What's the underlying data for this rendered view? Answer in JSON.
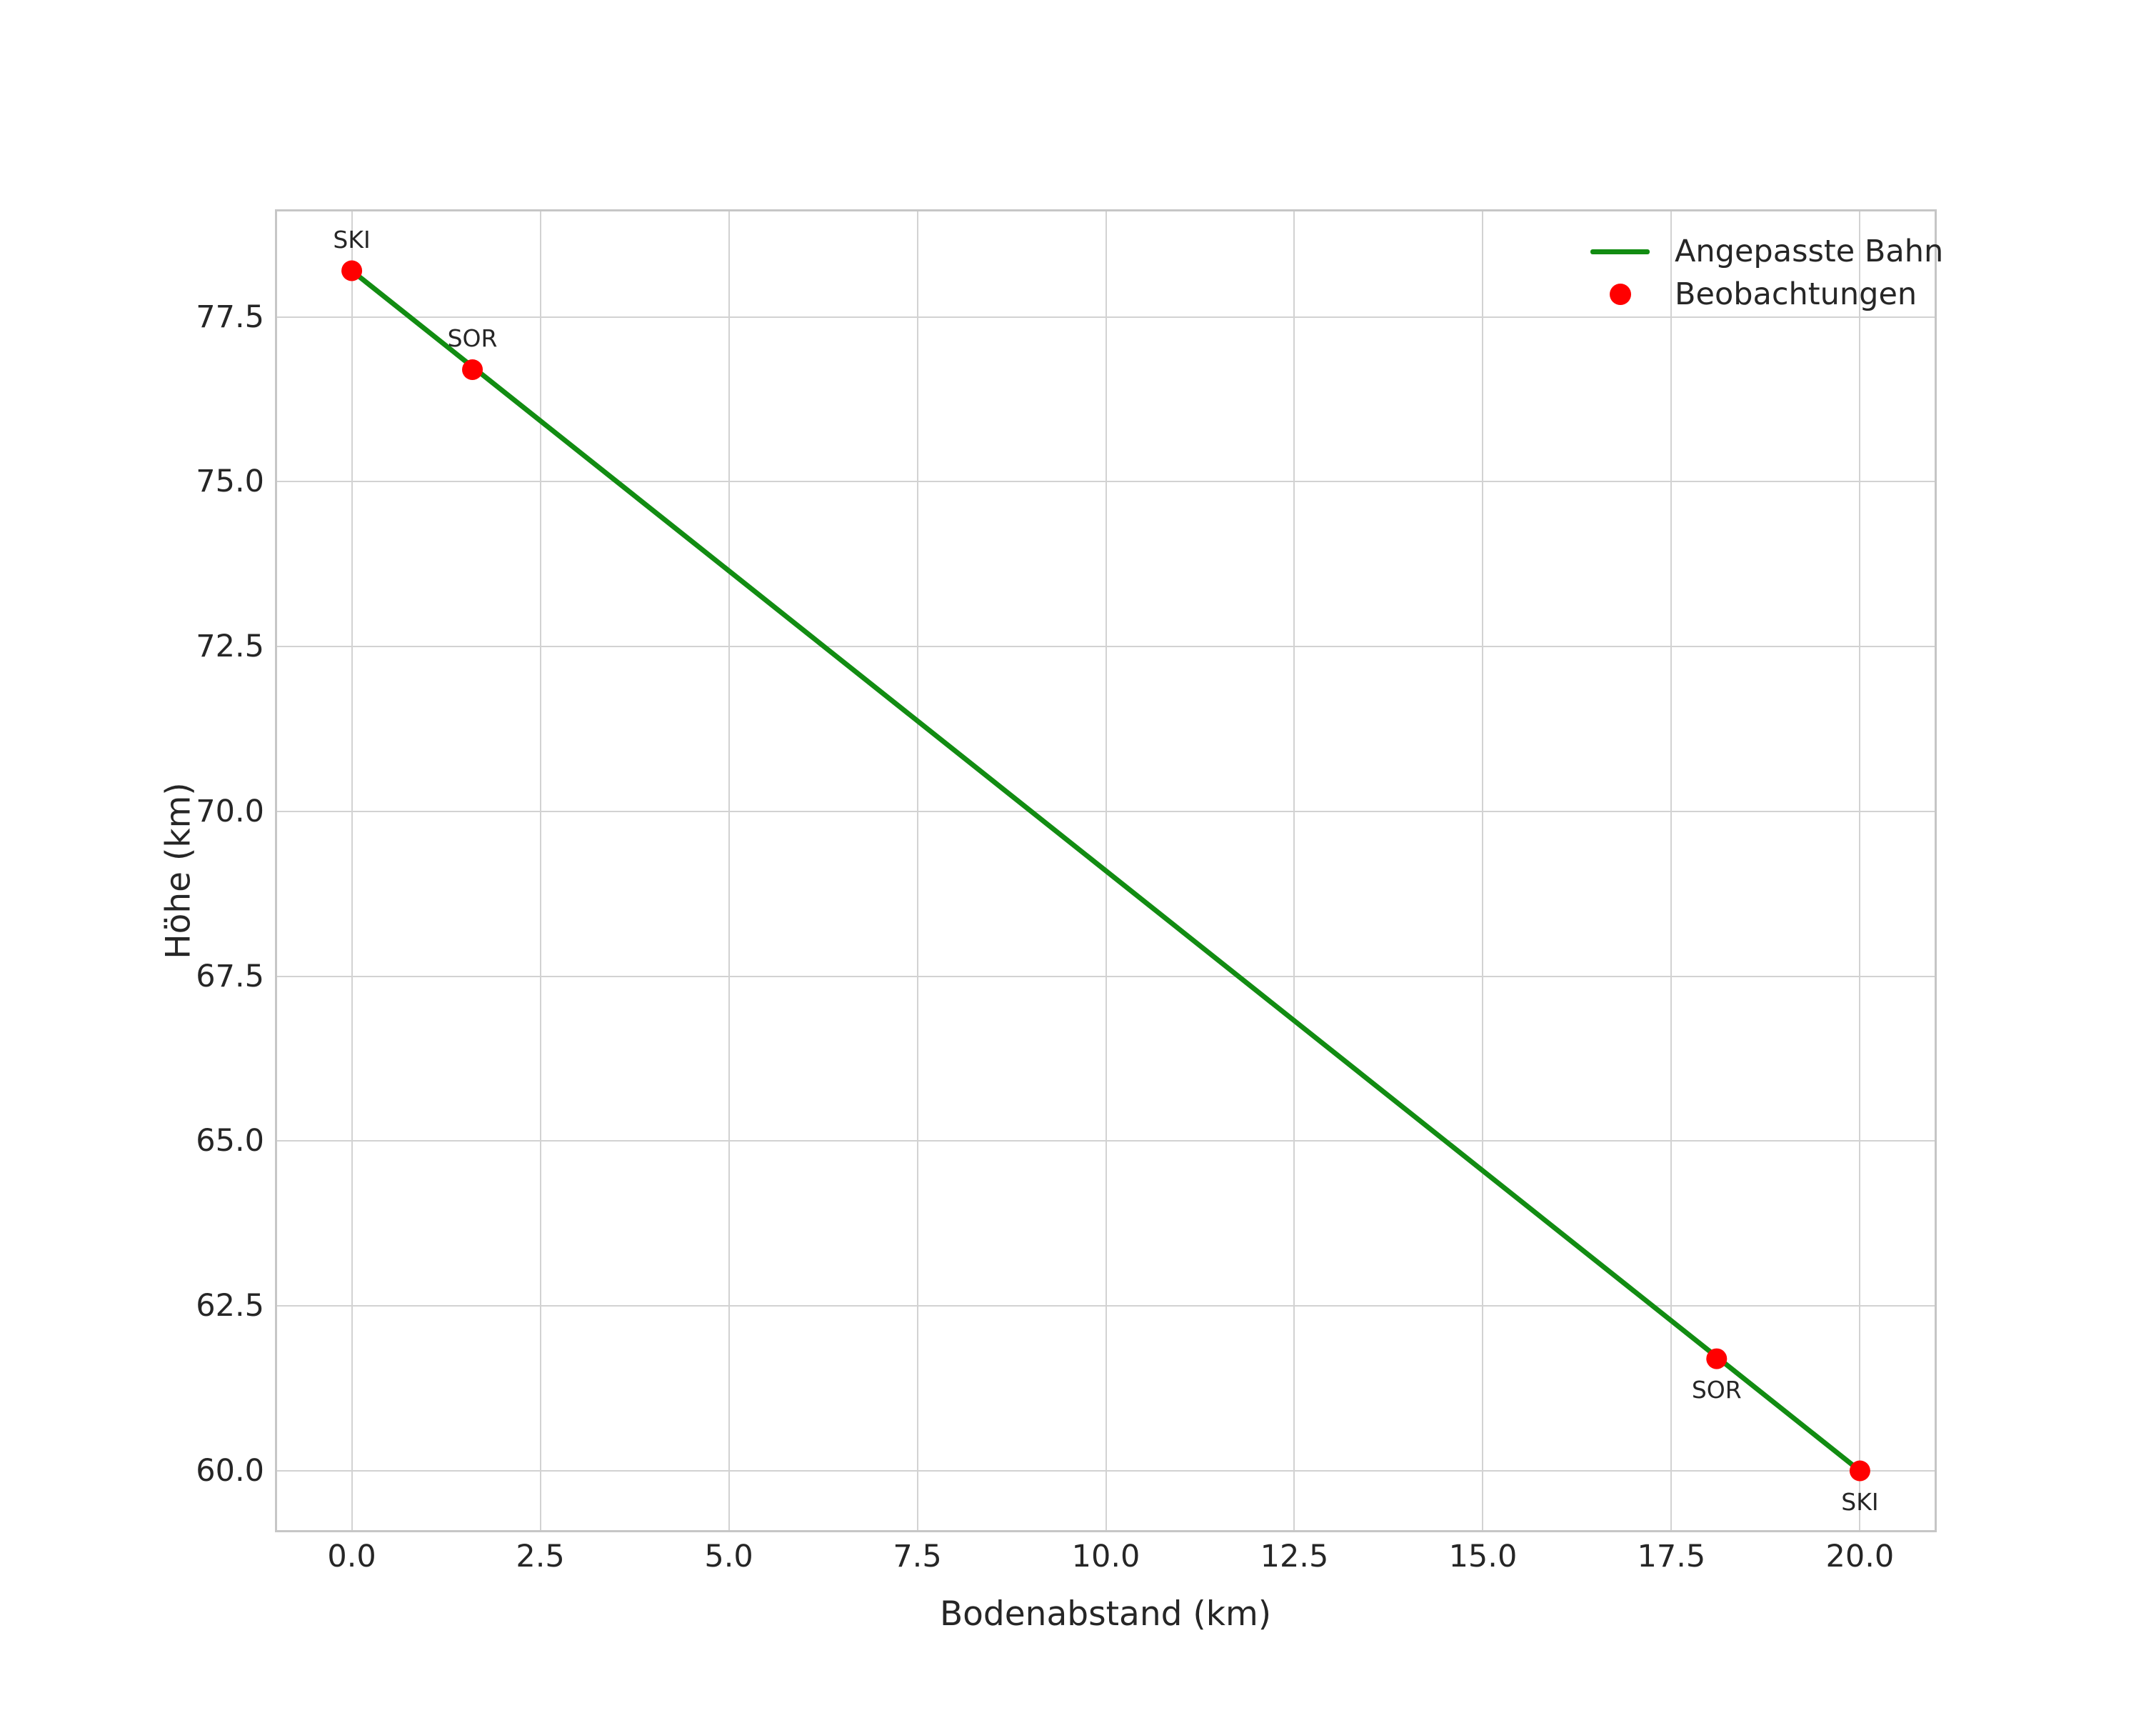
{
  "chart_data": {
    "type": "line",
    "title": "",
    "xlabel": "Bodenabstand (km)",
    "ylabel": "Höhe (km)",
    "xlim": [
      -1,
      21
    ],
    "ylim": [
      59.09,
      79.11
    ],
    "grid": true,
    "x_ticks": [
      0.0,
      2.5,
      5.0,
      7.5,
      10.0,
      12.5,
      15.0,
      17.5,
      20.0
    ],
    "x_tick_labels": [
      "0.0",
      "2.5",
      "5.0",
      "7.5",
      "10.0",
      "12.5",
      "15.0",
      "17.5",
      "20.0"
    ],
    "y_ticks": [
      60.0,
      62.5,
      65.0,
      67.5,
      70.0,
      72.5,
      75.0,
      77.5
    ],
    "y_tick_labels": [
      "60.0",
      "62.5",
      "65.0",
      "67.5",
      "70.0",
      "72.5",
      "75.0",
      "77.5"
    ],
    "legend": {
      "position": "upper right",
      "frame": false,
      "entries": [
        {
          "label": "Angepasste Bahn",
          "marker": "line",
          "color": "#128c12"
        },
        {
          "label": "Beobachtungen",
          "marker": "dot",
          "color": "#ff0000"
        }
      ]
    },
    "series": [
      {
        "name": "Angepasste Bahn",
        "type": "line",
        "color": "#128c12",
        "points": [
          [
            0.0,
            78.2
          ],
          [
            20.0,
            60.0
          ]
        ]
      },
      {
        "name": "Beobachtungen",
        "type": "scatter",
        "color": "#ff0000",
        "points": [
          [
            0.0,
            78.2
          ],
          [
            1.6,
            76.7
          ],
          [
            18.1,
            61.7
          ],
          [
            20.0,
            60.0
          ]
        ],
        "point_labels": [
          {
            "text": "SKI",
            "x": 0.0,
            "y": 78.2,
            "position": "above"
          },
          {
            "text": "SOR",
            "x": 1.6,
            "y": 76.7,
            "position": "above"
          },
          {
            "text": "SOR",
            "x": 18.1,
            "y": 61.7,
            "position": "below"
          },
          {
            "text": "SKI",
            "x": 20.0,
            "y": 60.0,
            "position": "below"
          }
        ]
      }
    ],
    "colors": {
      "fitted_line": "#128c12",
      "observations": "#ff0000",
      "grid": "#d2d2d2",
      "plot_border": "#c6c6c6",
      "text": "#262626",
      "background": "#ffffff"
    }
  }
}
